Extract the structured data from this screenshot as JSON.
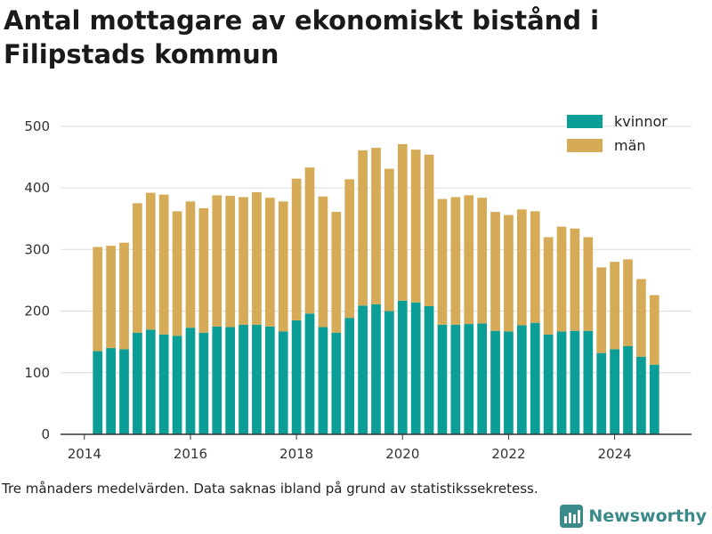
{
  "title": "Antal mottagare av ekonomiskt bistånd i Filipstads kommun",
  "footnote": "Tre månaders medelvärden. Data saknas ibland på grund av statistikssekretess.",
  "brand": {
    "name": "Newsworthy",
    "icon": "bar-chart-logo-icon",
    "color": "#3a8a8a"
  },
  "chart_data": {
    "type": "bar",
    "stacked": true,
    "x_start": 2014.25,
    "x_step": 0.25,
    "x_range": [
      2013.55,
      2025.45
    ],
    "x_ticks": [
      2014,
      2016,
      2018,
      2020,
      2022,
      2024
    ],
    "ylim": [
      0,
      520
    ],
    "y_ticks": [
      0,
      100,
      200,
      300,
      400,
      500
    ],
    "grid": true,
    "legend_position": "top-right",
    "series": [
      {
        "name": "kvinnor",
        "color": "#0a9e96",
        "values": [
          135,
          140,
          138,
          165,
          170,
          162,
          160,
          173,
          165,
          175,
          174,
          178,
          178,
          175,
          167,
          185,
          196,
          174,
          165,
          189,
          209,
          211,
          200,
          217,
          214,
          208,
          178,
          178,
          179,
          180,
          168,
          167,
          177,
          181,
          162,
          167,
          168,
          168,
          132,
          138,
          143,
          126,
          113
        ]
      },
      {
        "name": "män",
        "color": "#d6ab58",
        "values": [
          169,
          166,
          173,
          210,
          222,
          227,
          202,
          205,
          202,
          213,
          213,
          207,
          215,
          209,
          211,
          230,
          237,
          212,
          196,
          225,
          252,
          254,
          231,
          254,
          248,
          246,
          204,
          207,
          209,
          204,
          193,
          189,
          188,
          181,
          158,
          170,
          166,
          152,
          139,
          142,
          141,
          126,
          113
        ]
      }
    ]
  }
}
